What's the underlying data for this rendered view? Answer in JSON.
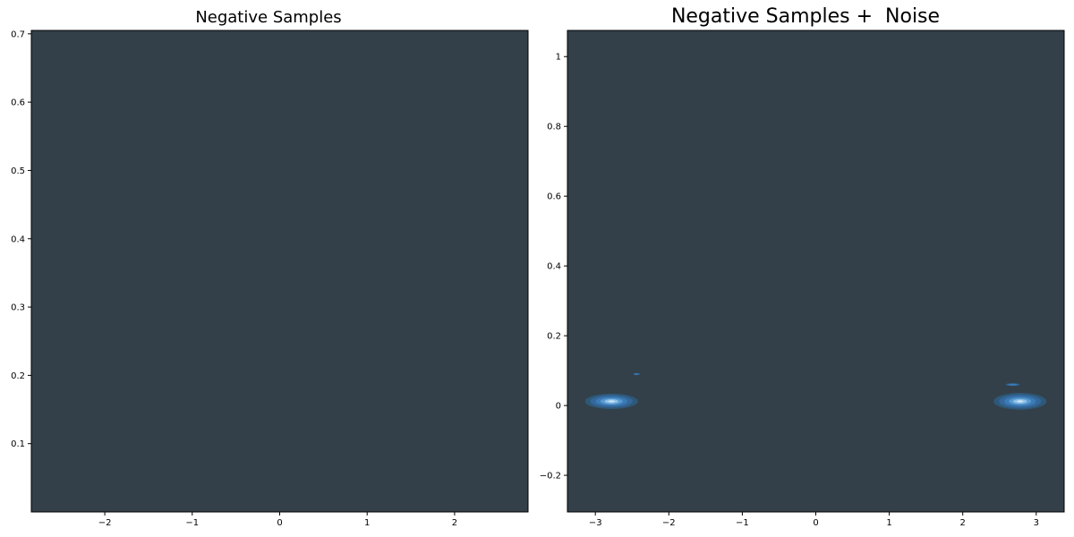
{
  "colors": {
    "background": "#334049",
    "density_blue": "#3b7bb6",
    "density_light": "#cfe6f7",
    "frame": "#000000"
  },
  "chart_data": [
    {
      "type": "heatmap",
      "kind": "kde density",
      "title": "Negative Samples",
      "xlabel": "",
      "ylabel": "",
      "xlim": [
        -2.84,
        2.84
      ],
      "ylim": [
        0.0,
        0.705
      ],
      "xticks": [
        -2,
        -1,
        0,
        1,
        2
      ],
      "yticks": [
        0.1,
        0.2,
        0.3,
        0.4,
        0.5,
        0.6,
        0.7
      ],
      "grid": false,
      "density_blobs": []
    },
    {
      "type": "heatmap",
      "kind": "kde density",
      "title": "Negative Samples +  Noise",
      "xlabel": "",
      "ylabel": "",
      "xlim": [
        -3.38,
        3.38
      ],
      "ylim": [
        -0.305,
        1.075
      ],
      "xticks": [
        -3,
        -2,
        -1,
        0,
        1,
        2,
        3
      ],
      "yticks": [
        -0.2,
        0.0,
        0.2,
        0.4,
        0.6,
        0.8,
        1.0
      ],
      "grid": false,
      "density_blobs": [
        {
          "x": -2.78,
          "y": 0.012,
          "sx": 0.36,
          "sy": 0.022
        },
        {
          "x": 2.78,
          "y": 0.012,
          "sx": 0.36,
          "sy": 0.024
        },
        {
          "x": 2.68,
          "y": 0.06,
          "sx": 0.1,
          "sy": 0.004
        },
        {
          "x": -2.44,
          "y": 0.09,
          "sx": 0.05,
          "sy": 0.003
        }
      ]
    }
  ]
}
